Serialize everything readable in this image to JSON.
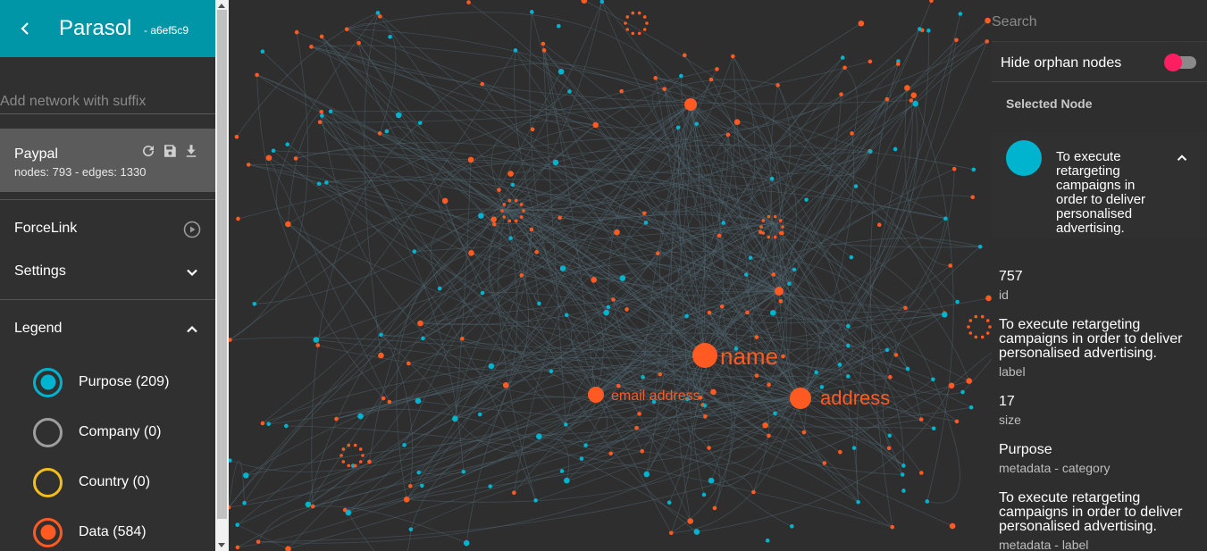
{
  "sidebar": {
    "app_title": "Parasol",
    "build_suffix": "- a6ef5c9",
    "add_network_placeholder": "Add network with suffix",
    "network": {
      "name": "Paypal",
      "stats": "nodes: 793 - edges: 1330"
    },
    "layout_label": "ForceLink",
    "settings_label": "Settings",
    "legend_label": "Legend",
    "legend_items": [
      {
        "label": "Purpose (209)",
        "color": "#00b3ce",
        "selected": true
      },
      {
        "label": "Company (0)",
        "color": "#9e9e9e",
        "selected": false
      },
      {
        "label": "Country (0)",
        "color": "#f2bd1d",
        "selected": false
      },
      {
        "label": "Data (584)",
        "color": "#ff5a21",
        "selected": true
      }
    ]
  },
  "graph": {
    "labels": [
      "name",
      "email address",
      "address"
    ],
    "colors": {
      "data": "#ff5a21",
      "purpose": "#00b3ce",
      "edge": "#4f6470",
      "background": "#2e2e2e"
    }
  },
  "panel": {
    "search_placeholder": "Search",
    "hide_orphans_label": "Hide orphan nodes",
    "hide_orphans_on": true,
    "selected_title": "Selected Node",
    "selected_node_text": "To execute retargeting campaigns in order to deliver personalised advertising.",
    "attributes": [
      {
        "value": "757",
        "key": "id"
      },
      {
        "value": "To execute retargeting campaigns in order to deliver personalised advertising.",
        "key": "label"
      },
      {
        "value": "17",
        "key": "size"
      },
      {
        "value": "Purpose",
        "key": "metadata - category"
      },
      {
        "value": "To execute retargeting campaigns in order to deliver personalised advertising.",
        "key": "metadata - label"
      }
    ]
  },
  "icons": {
    "back": "chevron-left-icon",
    "refresh": "refresh-icon",
    "save": "save-icon",
    "download": "download-icon",
    "play": "play-circle-icon",
    "settings_chevron": "chevron-down-icon",
    "legend_chevron": "chevron-up-icon",
    "node_chevron": "chevron-up-icon"
  }
}
